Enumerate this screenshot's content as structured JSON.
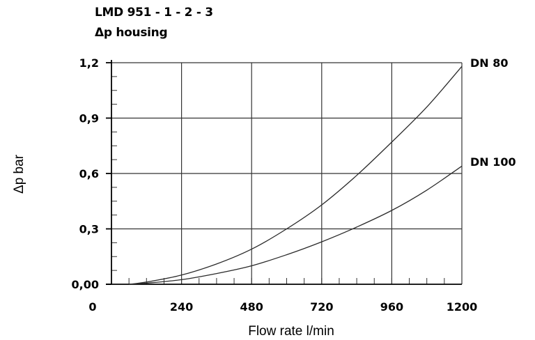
{
  "chart_data": {
    "type": "line",
    "title": "LMD 951 - 1 - 2 - 3",
    "subtitle": "Δp housing",
    "xlabel": "Flow rate l/min",
    "ylabel": "Δp bar",
    "xlim": [
      0,
      1200
    ],
    "ylim": [
      0,
      1.2
    ],
    "x_ticks": [
      "0",
      "240",
      "480",
      "720",
      "960",
      "1200"
    ],
    "y_ticks": [
      "0,00",
      "0,3",
      "0,6",
      "0,9",
      "1,2"
    ],
    "x_tick_values": [
      0,
      240,
      480,
      720,
      960,
      1200
    ],
    "y_tick_values": [
      0,
      0.3,
      0.6,
      0.9,
      1.2
    ],
    "grid": true,
    "series": [
      {
        "name": "DN 80",
        "x": [
          60,
          120,
          240,
          360,
          480,
          600,
          720,
          840,
          960,
          1080,
          1200
        ],
        "y": [
          0.0,
          0.012,
          0.05,
          0.11,
          0.19,
          0.3,
          0.43,
          0.59,
          0.77,
          0.96,
          1.18
        ]
      },
      {
        "name": "DN 100",
        "x": [
          60,
          120,
          240,
          360,
          480,
          600,
          720,
          840,
          960,
          1080,
          1200
        ],
        "y": [
          0.0,
          0.006,
          0.025,
          0.058,
          0.1,
          0.16,
          0.23,
          0.31,
          0.4,
          0.51,
          0.64
        ]
      }
    ]
  }
}
